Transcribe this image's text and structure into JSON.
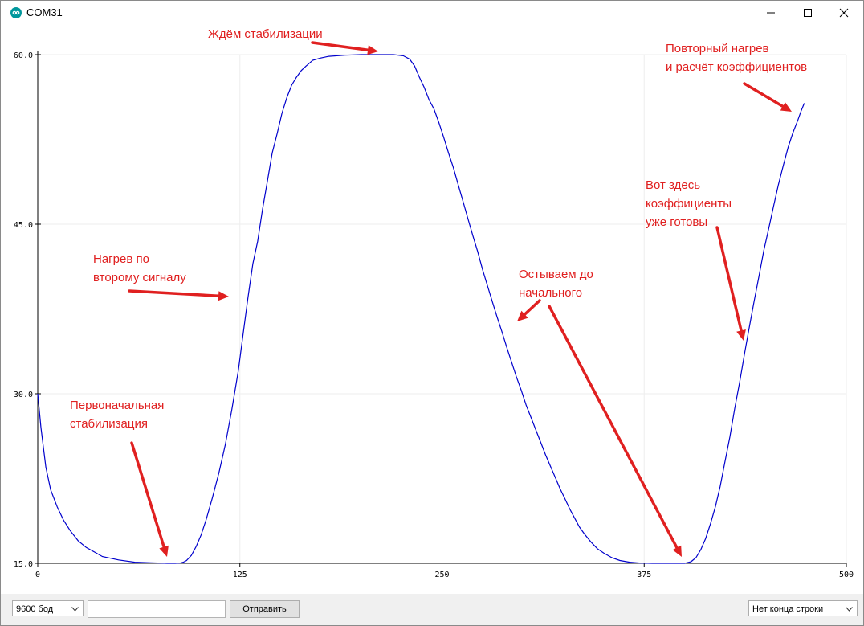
{
  "window": {
    "title": "COM31"
  },
  "chart_data": {
    "type": "line",
    "xlim": [
      0,
      500
    ],
    "ylim": [
      15.0,
      60.0
    ],
    "x_ticks": [
      "0",
      "125",
      "250",
      "375",
      "500"
    ],
    "y_ticks": [
      "15.0",
      "30.0",
      "45.0",
      "60.0"
    ],
    "grid": true,
    "series": [
      {
        "color": "#0000cc",
        "points": [
          [
            0,
            30.0
          ],
          [
            2,
            27.0
          ],
          [
            5,
            23.5
          ],
          [
            8,
            21.5
          ],
          [
            12,
            20.0
          ],
          [
            16,
            18.8
          ],
          [
            20,
            17.9
          ],
          [
            25,
            17.0
          ],
          [
            30,
            16.4
          ],
          [
            35,
            16.0
          ],
          [
            40,
            15.6
          ],
          [
            50,
            15.3
          ],
          [
            60,
            15.1
          ],
          [
            70,
            15.05
          ],
          [
            80,
            15.0
          ],
          [
            85,
            15.0
          ],
          [
            88,
            15.02
          ],
          [
            90,
            15.1
          ],
          [
            92,
            15.25
          ],
          [
            95,
            15.7
          ],
          [
            98,
            16.5
          ],
          [
            101,
            17.5
          ],
          [
            104,
            18.8
          ],
          [
            108,
            20.8
          ],
          [
            112,
            23.0
          ],
          [
            116,
            25.5
          ],
          [
            120,
            28.6
          ],
          [
            124,
            32.0
          ],
          [
            127,
            35.3
          ],
          [
            130,
            38.5
          ],
          [
            133,
            41.5
          ],
          [
            136,
            43.5
          ],
          [
            139,
            46.3
          ],
          [
            142,
            48.8
          ],
          [
            145,
            51.3
          ],
          [
            148,
            53.0
          ],
          [
            151,
            54.8
          ],
          [
            154,
            56.2
          ],
          [
            157,
            57.3
          ],
          [
            160,
            58.0
          ],
          [
            163,
            58.6
          ],
          [
            166,
            59.0
          ],
          [
            170,
            59.5
          ],
          [
            175,
            59.7
          ],
          [
            180,
            59.85
          ],
          [
            190,
            59.95
          ],
          [
            200,
            60.0
          ],
          [
            210,
            60.0
          ],
          [
            220,
            60.0
          ],
          [
            226,
            59.9
          ],
          [
            230,
            59.6
          ],
          [
            233,
            59.0
          ],
          [
            236,
            58.0
          ],
          [
            239,
            57.1
          ],
          [
            242,
            56.0
          ],
          [
            245,
            55.2
          ],
          [
            248,
            54.0
          ],
          [
            251,
            52.7
          ],
          [
            254,
            51.3
          ],
          [
            257,
            50.0
          ],
          [
            260,
            48.5
          ],
          [
            263,
            47.0
          ],
          [
            266,
            45.5
          ],
          [
            269,
            44.0
          ],
          [
            272,
            42.6
          ],
          [
            275,
            41.0
          ],
          [
            278,
            39.6
          ],
          [
            281,
            38.2
          ],
          [
            284,
            36.8
          ],
          [
            287,
            35.5
          ],
          [
            290,
            34.1
          ],
          [
            293,
            32.8
          ],
          [
            296,
            31.5
          ],
          [
            299,
            30.3
          ],
          [
            302,
            29.0
          ],
          [
            305,
            27.9
          ],
          [
            308,
            26.8
          ],
          [
            311,
            25.7
          ],
          [
            314,
            24.6
          ],
          [
            317,
            23.6
          ],
          [
            320,
            22.6
          ],
          [
            323,
            21.6
          ],
          [
            326,
            20.7
          ],
          [
            329,
            19.8
          ],
          [
            332,
            19.0
          ],
          [
            335,
            18.2
          ],
          [
            338,
            17.6
          ],
          [
            342,
            16.9
          ],
          [
            346,
            16.3
          ],
          [
            350,
            15.9
          ],
          [
            355,
            15.5
          ],
          [
            360,
            15.25
          ],
          [
            366,
            15.1
          ],
          [
            372,
            15.03
          ],
          [
            380,
            15.0
          ],
          [
            390,
            15.0
          ],
          [
            400,
            15.0
          ],
          [
            404,
            15.15
          ],
          [
            407,
            15.5
          ],
          [
            410,
            16.2
          ],
          [
            413,
            17.2
          ],
          [
            416,
            18.5
          ],
          [
            419,
            20.0
          ],
          [
            422,
            21.8
          ],
          [
            425,
            24.0
          ],
          [
            428,
            26.2
          ],
          [
            431,
            28.7
          ],
          [
            434,
            31.0
          ],
          [
            437,
            33.5
          ],
          [
            440,
            35.9
          ],
          [
            443,
            38.2
          ],
          [
            446,
            40.4
          ],
          [
            449,
            42.7
          ],
          [
            452,
            44.6
          ],
          [
            455,
            46.6
          ],
          [
            458,
            48.5
          ],
          [
            461,
            50.2
          ],
          [
            464,
            51.8
          ],
          [
            467,
            53.1
          ],
          [
            470,
            54.2
          ],
          [
            472,
            55.0
          ],
          [
            474,
            55.7
          ]
        ]
      }
    ]
  },
  "annotations": [
    {
      "id": "stabilization-wait",
      "text": "Ждём стабилизации"
    },
    {
      "id": "reheat",
      "lines": [
        "Повторный нагрев",
        "и расчёт коэффициентов"
      ]
    },
    {
      "id": "coefficients-ready",
      "lines": [
        "Вот здесь",
        "коэффициенты",
        "уже готовы"
      ]
    },
    {
      "id": "second-signal-heating",
      "lines": [
        "Нагрев по",
        "второму сигналу"
      ]
    },
    {
      "id": "cooling",
      "lines": [
        "Остываем до",
        "начального"
      ]
    },
    {
      "id": "initial-stabilization",
      "lines": [
        "Первоначальная",
        "стабилизация"
      ]
    }
  ],
  "controls": {
    "baud_select": {
      "value": "9600 бод"
    },
    "message_input": {
      "value": "",
      "placeholder": ""
    },
    "send_label": "Отправить",
    "line_ending_select": {
      "value": "Нет конца строки"
    }
  },
  "colors": {
    "annotation": "#e02020",
    "line": "#0000cc",
    "accent": "#00979c"
  }
}
